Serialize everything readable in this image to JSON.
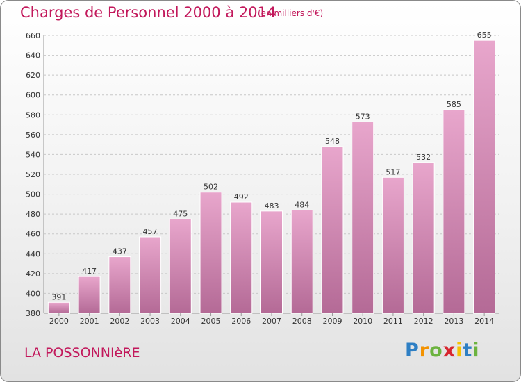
{
  "title": "Charges de Personnel 2000 à 2014",
  "unit_note": "(en milliers d'€)",
  "location": "LA POSSONNIèRE",
  "logo": {
    "text": "Proxiti",
    "letters": [
      "P",
      "r",
      "o",
      "x",
      "i",
      "t",
      "i"
    ],
    "letter_colors": [
      "#2e7fc4",
      "#f39200",
      "#6cb33f",
      "#d7262f",
      "#f6c200",
      "#2e7fc4",
      "#6cb33f"
    ]
  },
  "colors": {
    "accent": "#c2185b",
    "bar_top": "#e8a6cc",
    "bar_bottom": "#b46a96",
    "bar_stroke": "#ffffff",
    "grid": "#c8c8c8",
    "axis_text": "#333333"
  },
  "chart_data": {
    "type": "bar",
    "title": "Charges de Personnel 2000 à 2014",
    "categories": [
      "2000",
      "2001",
      "2002",
      "2003",
      "2004",
      "2005",
      "2006",
      "2007",
      "2008",
      "2009",
      "2010",
      "2011",
      "2012",
      "2013",
      "2014"
    ],
    "values": [
      391,
      417,
      437,
      457,
      475,
      502,
      492,
      483,
      484,
      548,
      573,
      517,
      532,
      585,
      655
    ],
    "xlabel": "",
    "ylabel": "",
    "ylim": [
      380,
      660
    ],
    "yticks": [
      380,
      400,
      420,
      440,
      460,
      480,
      500,
      520,
      540,
      560,
      580,
      600,
      620,
      640,
      660
    ],
    "grid": true,
    "legend": "none"
  }
}
